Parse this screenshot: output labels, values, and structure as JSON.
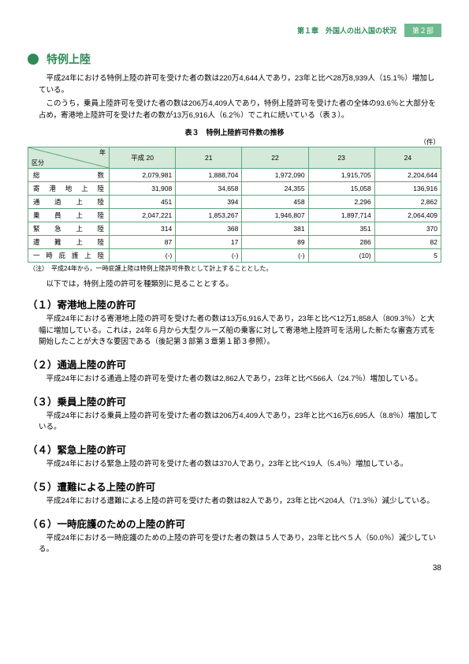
{
  "header": {
    "chapter": "第１章　外国人の出入国の状況",
    "part": "第２部"
  },
  "section": {
    "title": "特例上陸"
  },
  "intro": [
    "平成24年における特例上陸の許可を受けた者の数は220万4,644人であり，23年と比べ28万8,939人（15.1％）増加している。",
    "このうち，乗員上陸許可を受けた者の数は206万4,409人であり，特例上陸許可を受けた者の全体の93.6％と大部分を占め，寄港地上陸許可を受けた者の数が13万6,916人（6.2％）でこれに続いている（表３）。"
  ],
  "table": {
    "caption": "表３　特例上陸許可件数の推移",
    "unit": "（件）",
    "diag": {
      "year": "年",
      "category": "区分"
    },
    "years": [
      "平成 20",
      "21",
      "22",
      "23",
      "24"
    ],
    "rows": [
      {
        "label": "総　　　　　　　数",
        "cells": [
          "2,079,981",
          "1,888,704",
          "1,972,090",
          "1,915,705",
          "2,204,644"
        ]
      },
      {
        "label": "寄　港　地　上　陸",
        "cells": [
          "31,908",
          "34,658",
          "24,355",
          "15,058",
          "136,916"
        ]
      },
      {
        "label": "通　　過　　上　　陸",
        "cells": [
          "451",
          "394",
          "458",
          "2,296",
          "2,862"
        ]
      },
      {
        "label": "乗　　員　　上　　陸",
        "cells": [
          "2,047,221",
          "1,853,267",
          "1,946,807",
          "1,897,714",
          "2,064,409"
        ]
      },
      {
        "label": "緊　　急　　上　　陸",
        "cells": [
          "314",
          "368",
          "381",
          "351",
          "370"
        ]
      },
      {
        "label": "遭　　難　　上　　陸",
        "cells": [
          "87",
          "17",
          "89",
          "286",
          "82"
        ]
      },
      {
        "label": "一 時 庇 護 上 陸",
        "cells": [
          "(-)",
          "(-)",
          "(-)",
          "(10)",
          "5"
        ]
      }
    ],
    "note": "（注）　平成24年から，一時庇護上陸は特例上陸許可件数として計上することとした。"
  },
  "follow": "以下では，特例上陸の許可を種類別に見ることとする。",
  "subs": [
    {
      "title": "（１）寄港地上陸の許可",
      "paras": [
        "平成24年における寄港地上陸の許可を受けた者の数は13万6,916人であり，23年と比べ12万1,858人（809.3％）と大幅に増加している。これは，24年６月から大型クルーズ船の乗客に対して寄港地上陸許可を活用した新たな審査方式を開始したことが大きな要因である（後記第３部第３章第１節３参照）。"
      ]
    },
    {
      "title": "（２）通過上陸の許可",
      "paras": [
        "平成24年における通過上陸の許可を受けた者の数は2,862人であり，23年と比べ566人（24.7％）増加している。"
      ]
    },
    {
      "title": "（３）乗員上陸の許可",
      "paras": [
        "平成24年における乗員上陸の許可を受けた者の数は206万4,409人であり，23年と比べ16万6,695人（8.8％）増加している。"
      ]
    },
    {
      "title": "（４）緊急上陸の許可",
      "paras": [
        "平成24年における緊急上陸の許可を受けた者の数は370人であり，23年と比べ19人（5.4％）増加している。"
      ]
    },
    {
      "title": "（５）遭難による上陸の許可",
      "paras": [
        "平成24年における遭難による上陸の許可を受けた者の数は82人であり，23年と比べ204人（71.3％）減少している。"
      ]
    },
    {
      "title": "（６）一時庇護のための上陸の許可",
      "paras": [
        "平成24年における一時庇護のための上陸の許可を受けた者の数は５人であり，23年と比べ５人（50.0％）減少している。"
      ]
    }
  ],
  "pageNumber": "38"
}
